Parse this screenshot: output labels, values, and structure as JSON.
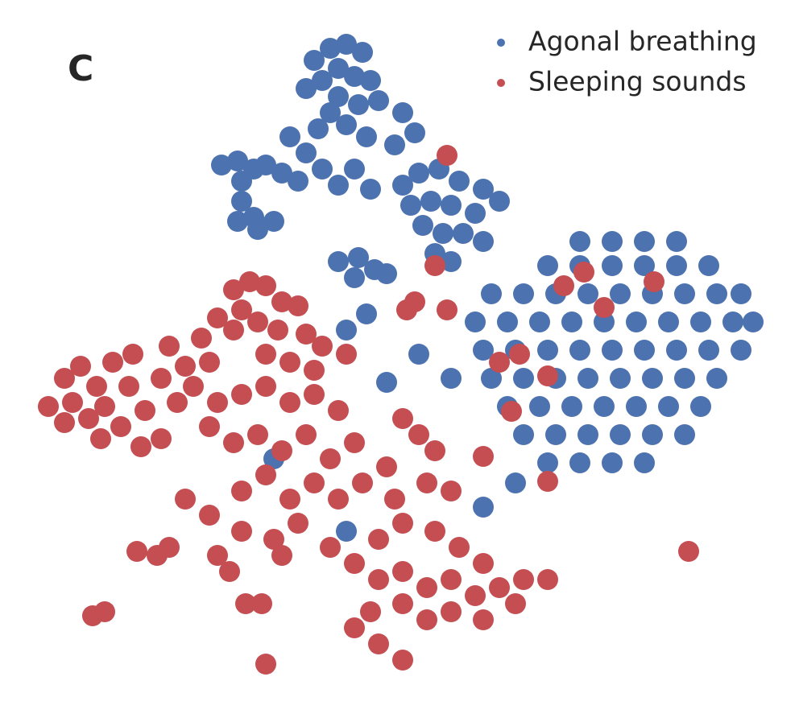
{
  "chart_data": {
    "type": "scatter",
    "panel_label": "C",
    "legend": "upper right",
    "xlim": [
      0,
      99.2
    ],
    "ylim": [
      0,
      89.2
    ],
    "series": [
      {
        "name": "Agonal breathing",
        "color": "#4c72b0",
        "x": [
          39,
          41,
          43,
          45,
          42,
          44,
          40,
          46,
          38,
          42,
          44.5,
          41,
          47,
          43,
          39.5,
          50,
          51.5,
          49,
          45.5,
          27.5,
          29.5,
          31.5,
          30,
          33,
          35,
          36,
          38,
          40,
          42,
          44,
          46,
          30,
          31.5,
          29.5,
          32,
          34,
          37,
          50,
          52,
          54.5,
          57,
          60,
          62,
          51,
          53.5,
          56,
          59,
          52.5,
          55,
          57.5,
          60,
          54,
          56,
          42,
          44.5,
          46.5,
          44,
          72,
          76,
          80,
          84,
          68,
          72,
          76,
          80,
          84,
          88,
          61,
          65,
          69,
          73,
          77,
          81,
          85,
          89,
          92,
          59,
          63,
          67,
          71,
          75,
          79,
          83,
          87,
          91,
          93.5,
          60,
          64,
          68,
          72,
          76,
          80,
          84,
          88,
          92,
          61,
          65,
          69,
          73,
          77,
          81,
          85,
          89,
          63,
          67,
          71,
          75,
          79,
          83,
          87,
          65,
          69,
          73,
          77,
          81,
          85,
          68,
          72,
          76,
          80,
          48,
          52,
          56,
          43,
          45.5,
          60,
          64,
          34,
          43,
          48
        ],
        "values": [
          81.7,
          83.2,
          83.7,
          82.7,
          80.7,
          79.7,
          79.2,
          79.2,
          78.2,
          77.2,
          76.2,
          75.2,
          76.7,
          73.7,
          73.2,
          75.2,
          72.7,
          71.2,
          72.2,
          68.7,
          69.2,
          68.2,
          66.7,
          68.7,
          67.7,
          72.2,
          70.2,
          68.2,
          66.2,
          68.2,
          65.7,
          64.2,
          62.2,
          61.7,
          60.7,
          61.7,
          66.7,
          66.2,
          67.7,
          68.2,
          66.7,
          65.7,
          64.2,
          63.7,
          64.2,
          63.7,
          62.7,
          61.2,
          60.2,
          60.2,
          59.2,
          57.7,
          56.7,
          56.7,
          57.2,
          55.7,
          54.7,
          59.2,
          59.2,
          59.2,
          59.2,
          56.2,
          56.2,
          56.2,
          56.2,
          56.2,
          56.2,
          52.7,
          52.7,
          52.7,
          52.7,
          52.7,
          52.7,
          52.7,
          52.7,
          52.7,
          49.2,
          49.2,
          49.2,
          49.2,
          49.2,
          49.2,
          49.2,
          49.2,
          49.2,
          49.2,
          45.7,
          45.7,
          45.7,
          45.7,
          45.7,
          45.7,
          45.7,
          45.7,
          45.7,
          42.2,
          42.2,
          42.2,
          42.2,
          42.2,
          42.2,
          42.2,
          42.2,
          38.7,
          38.7,
          38.7,
          38.7,
          38.7,
          38.7,
          38.7,
          35.2,
          35.2,
          35.2,
          35.2,
          35.2,
          35.2,
          31.7,
          31.7,
          31.7,
          31.7,
          41.7,
          45.2,
          42.2,
          48.2,
          50.2,
          26.2,
          29.2,
          32.2,
          23.2,
          55.2
        ]
      },
      {
        "name": "Sleeping sounds",
        "color": "#c44e52",
        "x": [
          6,
          8,
          10,
          12,
          14,
          9,
          11,
          13,
          16,
          15,
          18,
          20,
          17.5,
          20,
          22,
          23,
          8,
          12.5,
          16.5,
          21,
          29,
          31,
          33,
          35,
          37,
          30,
          32,
          34.5,
          38,
          40,
          29,
          27,
          33,
          36,
          39,
          25,
          26,
          24,
          27,
          30,
          33,
          36,
          39,
          42,
          26,
          29,
          32,
          35,
          38,
          41,
          44,
          23,
          26,
          30,
          33,
          36,
          39,
          42,
          45,
          48,
          50,
          52,
          54,
          49,
          53,
          56,
          30,
          34,
          37,
          41,
          44,
          47,
          50,
          54,
          57,
          60,
          47,
          50,
          53,
          56,
          59,
          62,
          65,
          68,
          50,
          53,
          56,
          60,
          64,
          46,
          44,
          47,
          50,
          27,
          28.5,
          35,
          17,
          19.5,
          21,
          11.5,
          13,
          33,
          30.5,
          32.5,
          85.5,
          51.5,
          50.5,
          43,
          55.5,
          60,
          70,
          72.5,
          75,
          81.2,
          64.5,
          68,
          62,
          63.5,
          68,
          55.5,
          54
        ],
        "values": [
          38.7,
          42.2,
          43.7,
          41.2,
          44.2,
          39.2,
          37.2,
          38.7,
          41.2,
          36.2,
          38.2,
          42.2,
          33.7,
          34.7,
          39.2,
          43.7,
          36.7,
          34.7,
          45.2,
          46.2,
          53.2,
          54.2,
          53.7,
          51.7,
          51.2,
          50.7,
          49.2,
          48.2,
          47.7,
          46.2,
          48.2,
          49.7,
          45.2,
          44.2,
          43.2,
          47.2,
          44.2,
          41.2,
          39.2,
          40.2,
          41.2,
          39.2,
          40.2,
          38.2,
          36.2,
          34.2,
          35.2,
          33.2,
          35.2,
          32.2,
          34.2,
          27.2,
          25.2,
          28.2,
          30.2,
          27.2,
          29.2,
          27.2,
          29.2,
          31.2,
          37.2,
          35.2,
          33.2,
          27.2,
          29.2,
          28.2,
          23.2,
          22.2,
          24.2,
          21.2,
          19.2,
          22.2,
          24.2,
          23.2,
          21.2,
          19.2,
          17.2,
          18.2,
          16.2,
          17.2,
          15.2,
          16.2,
          17.2,
          17.2,
          14.2,
          12.2,
          13.2,
          12.2,
          14.2,
          13.2,
          11.2,
          9.2,
          7.2,
          20.2,
          18.2,
          20.2,
          20.7,
          20.2,
          21.2,
          12.7,
          13.2,
          6.7,
          14.2,
          14.2,
          20.7,
          51.7,
          50.7,
          45.2,
          50.7,
          32.5,
          53.7,
          55.4,
          51,
          54.2,
          45.2,
          42.5,
          44.2,
          38.1,
          29.4,
          69.9,
          56.2
        ]
      }
    ]
  }
}
